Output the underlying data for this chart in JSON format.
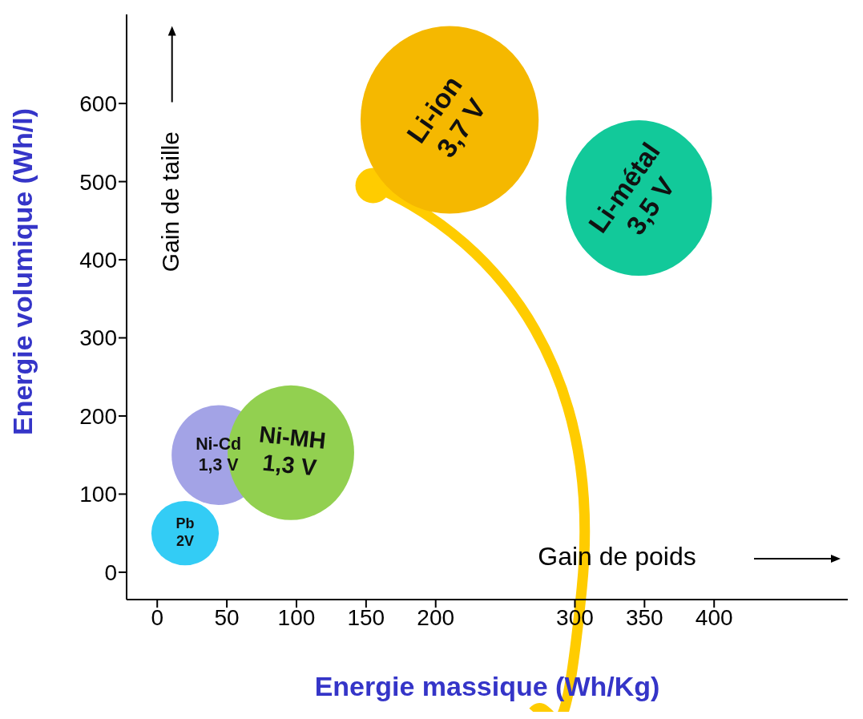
{
  "chart_data": {
    "type": "bubble",
    "xlabel": "Energie massique  (Wh/Kg)",
    "ylabel": "Energie volumique  (Wh/l)",
    "xlim": [
      -22,
      496
    ],
    "ylim": [
      -35,
      714
    ],
    "xticks": [
      0,
      50,
      100,
      150,
      200,
      300,
      350,
      400
    ],
    "yticks": [
      0,
      100,
      200,
      300,
      400,
      500,
      600
    ],
    "grid": false,
    "legend": false,
    "series": [
      {
        "name": "Pb 2V",
        "color": "#33ccf5",
        "x": [
          20
        ],
        "values": [
          50
        ],
        "sizes": [
          0.13
        ]
      },
      {
        "name": "Ni-Cd 1,3 V",
        "color": "#a3a3e6",
        "x": [
          44
        ],
        "values": [
          150
        ],
        "sizes": [
          0.28
        ]
      },
      {
        "name": "Ni-MH 1,3 V",
        "color": "#92d050",
        "x": [
          96
        ],
        "values": [
          153
        ],
        "sizes": [
          0.51
        ]
      },
      {
        "name": "Li-ion 3,7 V",
        "color": "#f5b800",
        "x": [
          210
        ],
        "values": [
          579
        ],
        "sizes": [
          1
        ]
      },
      {
        "name": "Li-métal 3,5 V",
        "color": "#12c99a",
        "x": [
          346
        ],
        "values": [
          479
        ],
        "sizes": [
          0.68
        ]
      }
    ],
    "annotations": [
      "Gain de taille",
      "Gain de poids"
    ]
  }
}
